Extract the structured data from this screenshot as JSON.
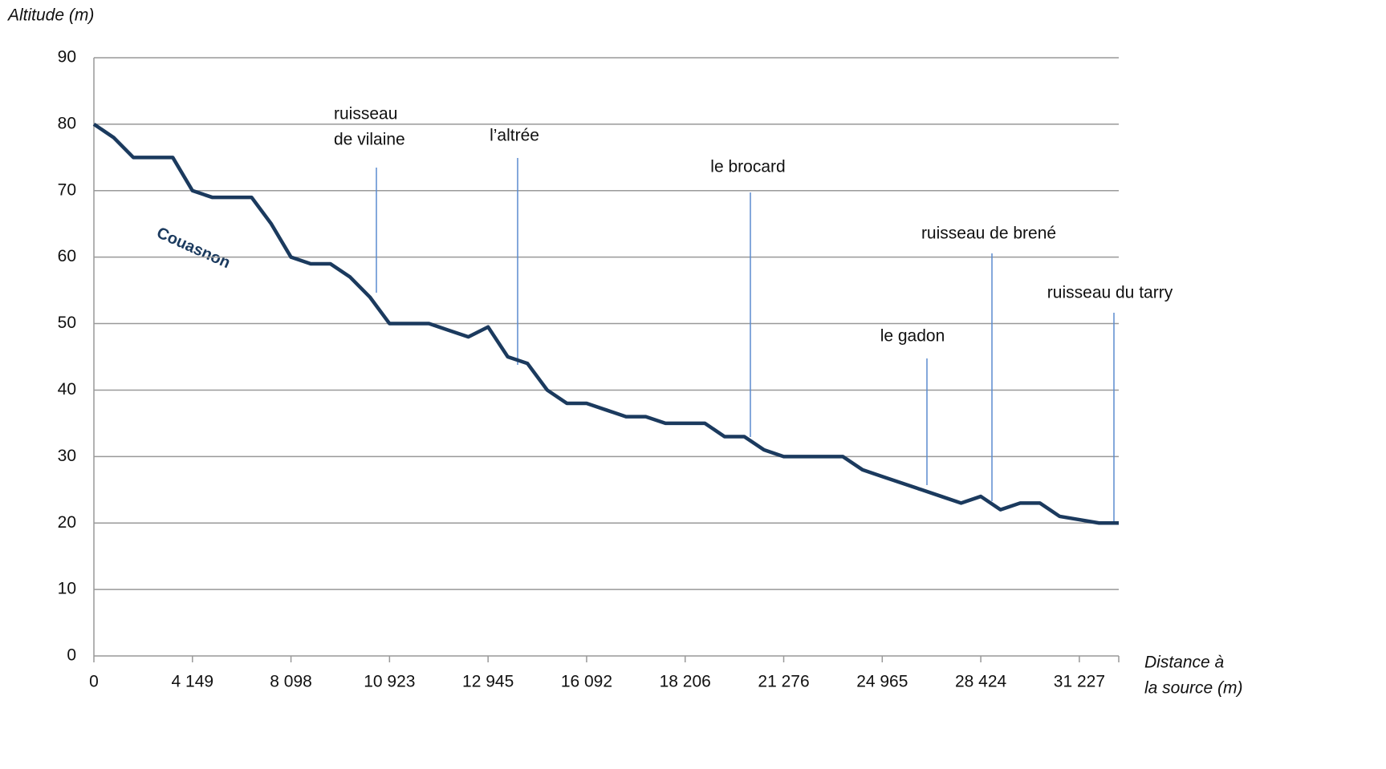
{
  "chart_data": {
    "type": "line",
    "y_label": "Altitude (m)",
    "x_label": [
      "Distance à",
      "la source (m)"
    ],
    "line_label": "Couasnon",
    "color": "#1b3a5e",
    "annotation_color": "#5b8ccf",
    "grid": true,
    "ylim": [
      0,
      90
    ],
    "yticks": [
      0,
      10,
      20,
      30,
      40,
      50,
      60,
      70,
      80,
      90
    ],
    "categories": [
      "0",
      null,
      null,
      null,
      null,
      "4 149",
      null,
      null,
      null,
      null,
      "8 098",
      null,
      null,
      null,
      null,
      "10 923",
      null,
      null,
      null,
      null,
      "12 945",
      null,
      null,
      null,
      null,
      "16 092",
      null,
      null,
      null,
      null,
      "18 206",
      null,
      null,
      null,
      null,
      "21 276",
      null,
      null,
      null,
      null,
      "24 965",
      null,
      null,
      null,
      null,
      "28 424",
      null,
      null,
      null,
      null,
      "31 227",
      null,
      null
    ],
    "values": [
      80,
      78,
      75,
      75,
      75,
      70,
      69,
      69,
      69,
      65,
      60,
      59,
      59,
      57,
      54,
      50,
      50,
      50,
      49,
      48,
      49.5,
      45,
      44,
      40,
      38,
      38,
      37,
      36,
      36,
      35,
      35,
      35,
      33,
      33,
      31,
      30,
      30,
      30,
      30,
      28,
      27,
      26,
      25,
      24,
      23,
      24,
      22,
      23,
      23,
      21,
      20.5,
      20,
      20
    ],
    "annotations": [
      [
        "ruisseau",
        "de vilaine"
      ],
      [
        "l’altrée"
      ],
      [
        "le brocard"
      ],
      [
        "le gadon"
      ],
      [
        "ruisseau de brené"
      ],
      [
        "ruisseau du tarry"
      ]
    ]
  }
}
